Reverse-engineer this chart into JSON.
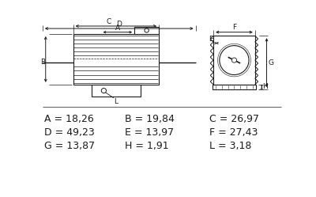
{
  "bg_color": "#ffffff",
  "line_color": "#1a1a1a",
  "text_color": "#1a1a1a",
  "label_rows": [
    [
      "A = 18,26",
      "B = 19,84",
      "C = 26,97"
    ],
    [
      "D = 49,23",
      "E = 13,97",
      "F = 27,43"
    ],
    [
      "G = 13,87",
      "H = 1,91",
      "L = 3,18"
    ]
  ],
  "font_size_labels": 9.0,
  "font_size_dims": 6.5
}
